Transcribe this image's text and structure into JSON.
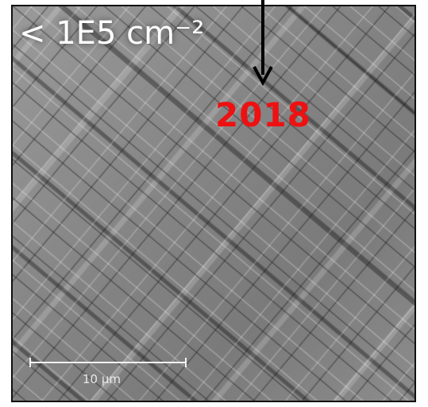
{
  "density_label": "< 1E5 cm⁻²",
  "year_label": "2018",
  "scale_bar_label": "10 µm",
  "colors": {
    "year": "#ee1111",
    "annotation": "#ffffff",
    "frame": "#111111"
  },
  "image_subject": "grayscale micrograph with a crosshatched line pattern"
}
